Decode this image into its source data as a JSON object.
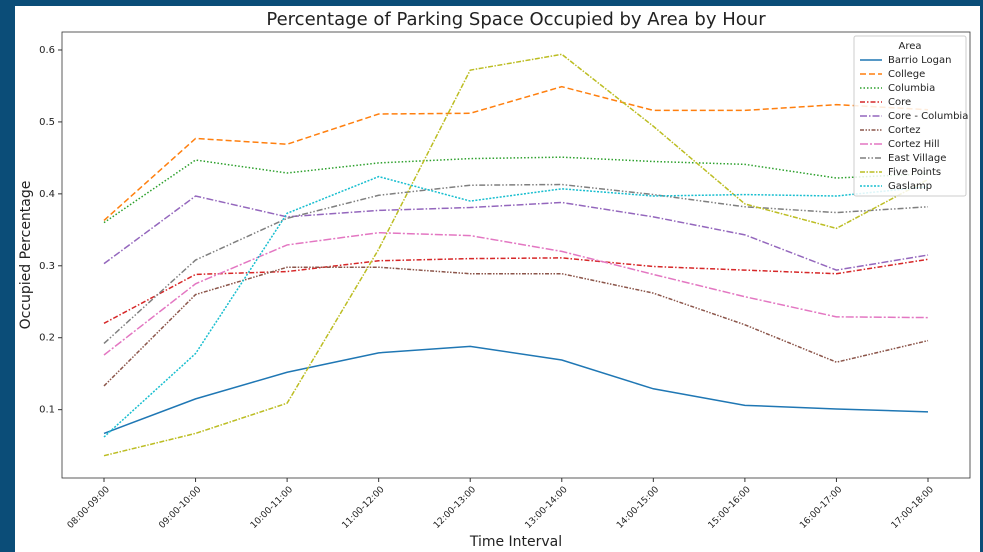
{
  "chart_data": {
    "type": "line",
    "title": "Percentage of Parking Space Occupied by Area by Hour",
    "x_label": "Time Interval",
    "y_label": "Occupied Percentage",
    "legend_title": "Area",
    "legend": "upper right",
    "categories": [
      "08:00-09:00",
      "09:00-10:00",
      "10:00-11:00",
      "11:00-12:00",
      "12:00-13:00",
      "13:00-14:00",
      "14:00-15:00",
      "15:00-16:00",
      "16:00-17:00",
      "17:00-18:00"
    ],
    "ylim": [
      0.005,
      0.625
    ],
    "yticks": [
      0.1,
      0.2,
      0.3,
      0.4,
      0.5,
      0.6
    ],
    "series": [
      {
        "name": "Barrio Logan",
        "color": "#1f77b4",
        "dash": "",
        "values": [
          0.067,
          0.115,
          0.152,
          0.179,
          0.188,
          0.169,
          0.129,
          0.106,
          0.101,
          0.097
        ]
      },
      {
        "name": "College",
        "color": "#ff7f0e",
        "dash": "6,3",
        "values": [
          0.363,
          0.477,
          0.469,
          0.511,
          0.512,
          0.549,
          0.516,
          0.516,
          0.524,
          0.517
        ]
      },
      {
        "name": "Columbia",
        "color": "#2ca02c",
        "dash": "1.5,2",
        "values": [
          0.36,
          0.447,
          0.429,
          0.443,
          0.449,
          0.451,
          0.445,
          0.441,
          0.422,
          0.428
        ]
      },
      {
        "name": "Core",
        "color": "#d62728",
        "dash": "5,2,1.5,2",
        "values": [
          0.22,
          0.288,
          0.292,
          0.307,
          0.31,
          0.311,
          0.299,
          0.294,
          0.289,
          0.309
        ]
      },
      {
        "name": "Core - Columbia",
        "color": "#9467bd",
        "dash": "7,2,1.5,2",
        "values": [
          0.303,
          0.397,
          0.368,
          0.377,
          0.381,
          0.388,
          0.368,
          0.343,
          0.294,
          0.315
        ]
      },
      {
        "name": "Cortez",
        "color": "#8c564b",
        "dash": "4,1.5,1.5,1.5,1.5,1.5",
        "values": [
          0.133,
          0.26,
          0.298,
          0.298,
          0.289,
          0.289,
          0.262,
          0.218,
          0.166,
          0.196
        ]
      },
      {
        "name": "Cortez Hill",
        "color": "#e377c2",
        "dash": "8,2,2,2",
        "values": [
          0.176,
          0.275,
          0.329,
          0.346,
          0.342,
          0.32,
          0.288,
          0.257,
          0.229,
          0.228
        ]
      },
      {
        "name": "East Village",
        "color": "#7f7f7f",
        "dash": "6,2,1.5,2,1.5,2",
        "values": [
          0.192,
          0.308,
          0.366,
          0.398,
          0.412,
          0.413,
          0.399,
          0.382,
          0.374,
          0.382
        ]
      },
      {
        "name": "Five Points",
        "color": "#bcbd22",
        "dash": "5,1.5,1.5,1.5",
        "values": [
          0.036,
          0.067,
          0.109,
          0.323,
          0.572,
          0.594,
          0.494,
          0.386,
          0.352,
          0.42
        ]
      },
      {
        "name": "Gaslamp",
        "color": "#17becf",
        "dash": "2,1.5",
        "values": [
          0.062,
          0.178,
          0.373,
          0.424,
          0.39,
          0.407,
          0.397,
          0.399,
          0.397,
          0.41
        ]
      }
    ]
  }
}
